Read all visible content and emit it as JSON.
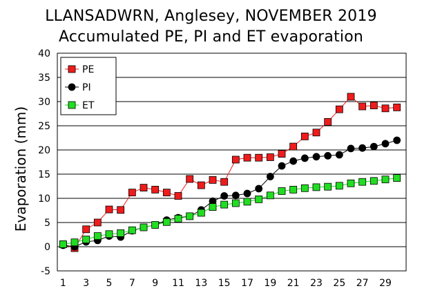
{
  "chart_data": {
    "type": "line",
    "title": "LLANSADWRN, Anglesey, NOVEMBER 2019",
    "subtitle": "Accumulated PE, PI and ET evaporation",
    "ylabel": "Evaporation (mm)",
    "xlabel": "",
    "ylim": [
      -5,
      40
    ],
    "xlim": [
      1,
      30
    ],
    "grid": true,
    "legend_position": "top-left",
    "x": [
      1,
      2,
      3,
      4,
      5,
      6,
      7,
      8,
      9,
      10,
      11,
      12,
      13,
      14,
      15,
      16,
      17,
      18,
      19,
      20,
      21,
      22,
      23,
      24,
      25,
      26,
      27,
      28,
      29,
      30
    ],
    "x_tick_labels": [
      "1",
      "3",
      "5",
      "7",
      "9",
      "11",
      "13",
      "15",
      "17",
      "19",
      "21",
      "23",
      "25",
      "27",
      "29"
    ],
    "y_tick_labels": [
      "-5",
      "0",
      "5",
      "10",
      "15",
      "20",
      "25",
      "30",
      "35",
      "40"
    ],
    "series": [
      {
        "name": "PE",
        "marker": "square",
        "color": "#ee1c1c",
        "values": [
          0.5,
          -0.3,
          3.6,
          5.0,
          7.7,
          7.6,
          11.2,
          12.2,
          11.8,
          11.2,
          10.5,
          14.0,
          12.7,
          13.8,
          13.4,
          18.0,
          18.4,
          18.4,
          18.5,
          19.2,
          20.7,
          22.8,
          23.6,
          25.8,
          28.4,
          31.0,
          29.0,
          29.2,
          28.6,
          28.8
        ]
      },
      {
        "name": "PI",
        "marker": "circle",
        "color": "#000000",
        "values": [
          0.3,
          0.0,
          1.0,
          1.3,
          2.2,
          2.0,
          3.3,
          4.0,
          4.5,
          5.5,
          6.0,
          6.3,
          7.6,
          9.4,
          10.5,
          10.6,
          11.0,
          12.0,
          14.5,
          16.7,
          17.7,
          18.3,
          18.6,
          18.8,
          19.0,
          20.3,
          20.4,
          20.7,
          21.3,
          22.0
        ]
      },
      {
        "name": "ET",
        "marker": "square",
        "color": "#22dd22",
        "values": [
          0.5,
          0.9,
          1.5,
          2.2,
          2.6,
          2.8,
          3.4,
          4.0,
          4.5,
          5.1,
          5.8,
          6.3,
          7.0,
          8.2,
          8.7,
          9.0,
          9.3,
          9.8,
          10.6,
          11.5,
          11.8,
          12.1,
          12.3,
          12.4,
          12.6,
          13.1,
          13.4,
          13.6,
          13.9,
          14.2
        ]
      }
    ]
  }
}
